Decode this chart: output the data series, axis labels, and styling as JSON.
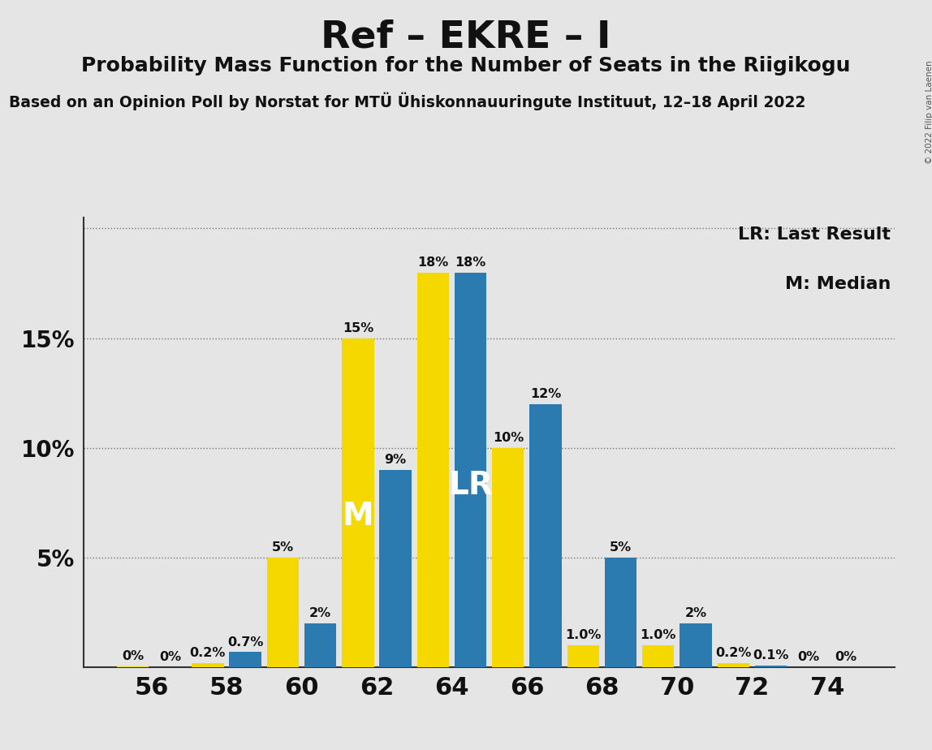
{
  "title": "Ref – EKRE – I",
  "subtitle": "Probability Mass Function for the Number of Seats in the Riigikogu",
  "source": "Based on an Opinion Poll by Norstat for MTÜ Ühiskonnauuringute Instituut, 12–18 April 2022",
  "copyright": "© 2022 Filip van Laenen",
  "seat_labels": [
    56,
    58,
    60,
    62,
    64,
    66,
    68,
    70,
    72,
    74
  ],
  "yellow_per_seat": [
    0.05,
    0.2,
    5.0,
    15.0,
    18.0,
    10.0,
    1.0,
    1.0,
    0.2,
    0.0
  ],
  "blue_per_seat": [
    0.0,
    0.7,
    2.0,
    9.0,
    18.0,
    12.0,
    5.0,
    2.0,
    0.1,
    0.0
  ],
  "yellow_label_per_seat": [
    "0%",
    "0.2%",
    "5%",
    "15%",
    "18%",
    "10%",
    "1.0%",
    "1.0%",
    "0.2%",
    "0%"
  ],
  "blue_label_per_seat": [
    "0%",
    "0.7%",
    "2%",
    "9%",
    "18%",
    "12%",
    "5%",
    "2%",
    "0.1%",
    "0%"
  ],
  "blue_color": "#2B7BB0",
  "yellow_color": "#F5D800",
  "background_color": "#E5E5E5",
  "median_seat": 62,
  "lr_seat": 64,
  "legend_lr": "LR: Last Result",
  "legend_m": "M: Median",
  "copyright_text": "© 2022 Filip van Laenen"
}
